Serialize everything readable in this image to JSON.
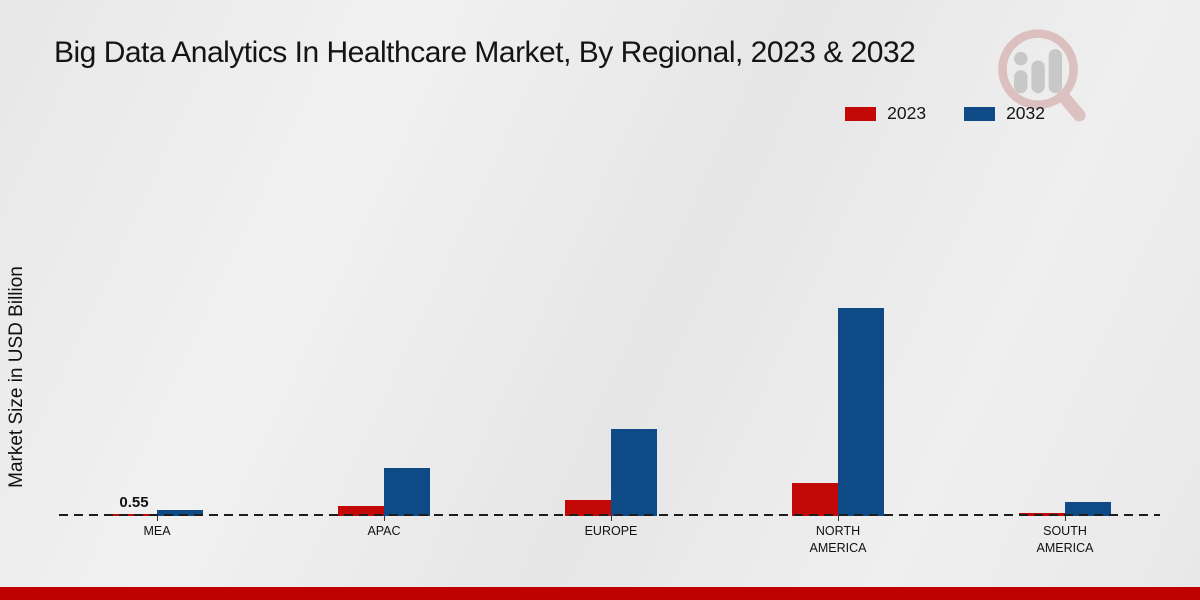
{
  "title": "Big Data Analytics In Healthcare Market, By Regional, 2023 & 2032",
  "y_axis_label": "Market Size in USD Billion",
  "legend": {
    "position": "top-right",
    "items": [
      {
        "label": "2023",
        "color": "#c30808"
      },
      {
        "label": "2032",
        "color": "#0d4a86"
      }
    ]
  },
  "chart_data": {
    "type": "bar",
    "categories": [
      "MEA",
      "APAC",
      "EUROPE",
      "NORTH AMERICA",
      "SOUTH AMERICA"
    ],
    "series": [
      {
        "name": "2023",
        "color": "#c30808",
        "values": [
          0.55,
          2.8,
          4.4,
          9.1,
          0.9
        ]
      },
      {
        "name": "2032",
        "color": "#0d4a86",
        "values": [
          1.7,
          13.1,
          23.8,
          57.2,
          3.9
        ]
      }
    ],
    "data_labels": [
      {
        "series": "2023",
        "category": "MEA",
        "text": "0.55"
      }
    ],
    "ylabel": "Market Size in USD Billion",
    "ylim": [
      0,
      60
    ],
    "grid": false,
    "baseline_style": "dashed",
    "legend_position": "top-right"
  },
  "colors": {
    "bar_2023": "#c30808",
    "bar_2032": "#0d4a86",
    "bottom_band": "#bf0000",
    "background": "#eaeaea",
    "baseline": "#1d1d1d"
  },
  "watermark_icon": "magnifier-bar-chart-logo"
}
